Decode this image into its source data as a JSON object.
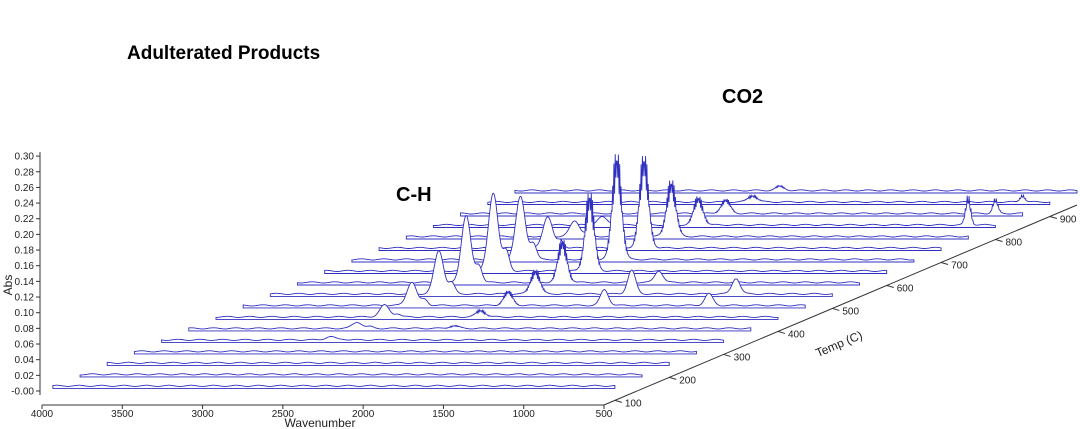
{
  "chart_data": {
    "type": "line",
    "subtype": "3d-waterfall",
    "title": "Adulterated Products",
    "xlabel": "Wavenumber",
    "ylabel": "Abs",
    "zlabel": "Temp (C)",
    "x_ticks": [
      4000,
      3500,
      3000,
      2500,
      2000,
      1500,
      1000,
      500
    ],
    "y_ticks": [
      "-0.00",
      "0.02",
      "0.04",
      "0.06",
      "0.08",
      "0.10",
      "0.12",
      "0.14",
      "0.16",
      "0.18",
      "0.20",
      "0.22",
      "0.24",
      "0.26",
      "0.28",
      "0.30"
    ],
    "z_ticks": [
      100,
      200,
      300,
      400,
      500,
      600,
      700,
      800,
      900
    ],
    "xlim": [
      4000,
      500
    ],
    "ylim": [
      0,
      0.3
    ],
    "zlim": [
      80,
      950
    ],
    "line_color": "#3030c0",
    "annotations": [
      {
        "text": "C-H",
        "wavenumber": 2950,
        "temp": 620
      },
      {
        "text": "CO2",
        "wavenumber": 2350,
        "temp": 680
      }
    ],
    "series": [
      {
        "temp": 100,
        "peaks": []
      },
      {
        "temp": 150,
        "peaks": []
      },
      {
        "temp": 200,
        "peaks": []
      },
      {
        "temp": 250,
        "peaks": []
      },
      {
        "temp": 300,
        "peaks": [
          {
            "wavenumber": 2950,
            "abs": 0.004
          }
        ]
      },
      {
        "temp": 350,
        "peaks": [
          {
            "wavenumber": 2950,
            "abs": 0.008
          },
          {
            "wavenumber": 2350,
            "abs": 0.004
          }
        ]
      },
      {
        "temp": 400,
        "peaks": [
          {
            "wavenumber": 2950,
            "abs": 0.015
          },
          {
            "wavenumber": 2350,
            "abs": 0.01
          }
        ]
      },
      {
        "temp": 450,
        "peaks": [
          {
            "wavenumber": 2950,
            "abs": 0.03
          },
          {
            "wavenumber": 2350,
            "abs": 0.02
          },
          {
            "wavenumber": 1750,
            "abs": 0.02
          },
          {
            "wavenumber": 1100,
            "abs": 0.015
          }
        ]
      },
      {
        "temp": 500,
        "peaks": [
          {
            "wavenumber": 2950,
            "abs": 0.055
          },
          {
            "wavenumber": 2350,
            "abs": 0.035
          },
          {
            "wavenumber": 1750,
            "abs": 0.03
          },
          {
            "wavenumber": 1100,
            "abs": 0.02
          }
        ]
      },
      {
        "temp": 550,
        "peaks": [
          {
            "wavenumber": 2950,
            "abs": 0.085
          },
          {
            "wavenumber": 2350,
            "abs": 0.06
          },
          {
            "wavenumber": 1750,
            "abs": 0.015
          }
        ]
      },
      {
        "temp": 600,
        "peaks": [
          {
            "wavenumber": 2950,
            "abs": 0.1
          },
          {
            "wavenumber": 2350,
            "abs": 0.11
          }
        ]
      },
      {
        "temp": 650,
        "peaks": [
          {
            "wavenumber": 2950,
            "abs": 0.08
          },
          {
            "wavenumber": 2350,
            "abs": 0.15
          }
        ]
      },
      {
        "temp": 700,
        "peaks": [
          {
            "wavenumber": 2950,
            "abs": 0.04
          },
          {
            "wavenumber": 2350,
            "abs": 0.13
          }
        ]
      },
      {
        "temp": 750,
        "peaks": [
          {
            "wavenumber": 2950,
            "abs": 0.02
          },
          {
            "wavenumber": 2350,
            "abs": 0.08
          }
        ]
      },
      {
        "temp": 800,
        "peaks": [
          {
            "wavenumber": 2950,
            "abs": 0.01
          },
          {
            "wavenumber": 2350,
            "abs": 0.04
          },
          {
            "wavenumber": 670,
            "abs": 0.04
          }
        ]
      },
      {
        "temp": 850,
        "peaks": [
          {
            "wavenumber": 2350,
            "abs": 0.02
          },
          {
            "wavenumber": 670,
            "abs": 0.02
          }
        ]
      },
      {
        "temp": 900,
        "peaks": [
          {
            "wavenumber": 2350,
            "abs": 0.01
          },
          {
            "wavenumber": 670,
            "abs": 0.01
          }
        ]
      },
      {
        "temp": 950,
        "peaks": [
          {
            "wavenumber": 2350,
            "abs": 0.006
          }
        ]
      }
    ]
  }
}
